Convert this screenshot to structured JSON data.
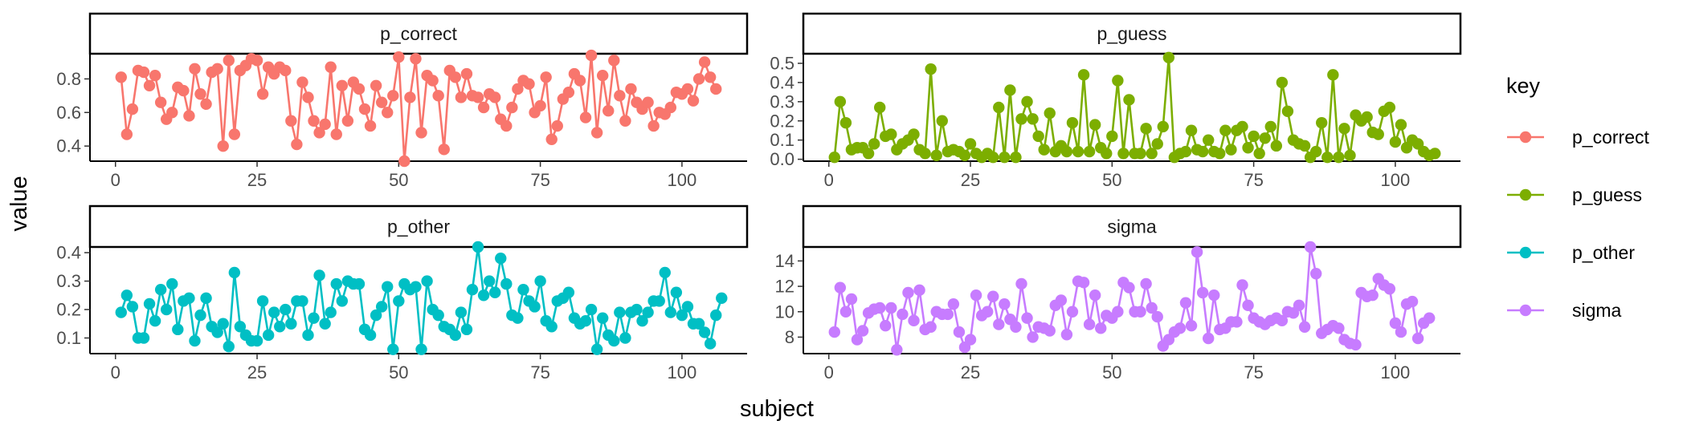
{
  "chart_data": {
    "type": "line",
    "x_label": "subject",
    "y_label": "value",
    "legend": {
      "title": "key",
      "position": "right",
      "entries": [
        {
          "name": "p_correct",
          "color": "#F8766D"
        },
        {
          "name": "p_guess",
          "color": "#7CAE00"
        },
        {
          "name": "p_other",
          "color": "#00BFC4"
        },
        {
          "name": "sigma",
          "color": "#C77CFF"
        }
      ]
    },
    "x_ticks": [
      0,
      25,
      50,
      75,
      100
    ],
    "x_range": [
      -4.5,
      111.5
    ],
    "panels": [
      {
        "name": "p_correct",
        "strip_label": "p_correct",
        "color": "#F8766D",
        "y_range": [
          0.31,
          0.95
        ],
        "y_ticks": [
          0.4,
          0.6,
          0.8
        ],
        "y_tick_labels": [
          "0.4",
          "0.6",
          "0.8"
        ],
        "values": [
          0.81,
          0.47,
          0.62,
          0.85,
          0.84,
          0.76,
          0.82,
          0.66,
          0.56,
          0.6,
          0.75,
          0.73,
          0.58,
          0.86,
          0.71,
          0.65,
          0.84,
          0.86,
          0.4,
          0.91,
          0.47,
          0.85,
          0.88,
          0.92,
          0.91,
          0.71,
          0.87,
          0.83,
          0.87,
          0.85,
          0.55,
          0.41,
          0.78,
          0.69,
          0.55,
          0.48,
          0.53,
          0.87,
          0.47,
          0.76,
          0.55,
          0.78,
          0.74,
          0.62,
          0.52,
          0.76,
          0.66,
          0.6,
          0.7,
          0.93,
          0.31,
          0.69,
          0.92,
          0.48,
          0.82,
          0.79,
          0.7,
          0.38,
          0.85,
          0.81,
          0.69,
          0.83,
          0.7,
          0.69,
          0.63,
          0.71,
          0.69,
          0.56,
          0.52,
          0.63,
          0.74,
          0.79,
          0.77,
          0.6,
          0.64,
          0.81,
          0.44,
          0.52,
          0.68,
          0.72,
          0.83,
          0.79,
          0.57,
          0.94,
          0.48,
          0.82,
          0.61,
          0.91,
          0.7,
          0.55,
          0.74,
          0.66,
          0.62,
          0.66,
          0.52,
          0.6,
          0.59,
          0.63,
          0.72,
          0.71,
          0.74,
          0.67,
          0.8,
          0.9,
          0.81,
          0.74
        ]
      },
      {
        "name": "p_guess",
        "strip_label": "p_guess",
        "color": "#7CAE00",
        "y_range": [
          -0.01,
          0.55
        ],
        "y_ticks": [
          0.0,
          0.1,
          0.2,
          0.3,
          0.4,
          0.5
        ],
        "y_tick_labels": [
          "0.0",
          "0.1",
          "0.2",
          "0.3",
          "0.4",
          "0.5"
        ],
        "values": [
          0.01,
          0.3,
          0.19,
          0.05,
          0.06,
          0.06,
          0.03,
          0.08,
          0.27,
          0.12,
          0.13,
          0.05,
          0.08,
          0.1,
          0.13,
          0.05,
          0.03,
          0.47,
          0.02,
          0.2,
          0.04,
          0.05,
          0.04,
          0.02,
          0.08,
          0.03,
          0.01,
          0.03,
          0.01,
          0.27,
          0.01,
          0.36,
          0.01,
          0.21,
          0.3,
          0.21,
          0.12,
          0.05,
          0.24,
          0.04,
          0.07,
          0.04,
          0.19,
          0.04,
          0.44,
          0.04,
          0.18,
          0.06,
          0.03,
          0.12,
          0.41,
          0.03,
          0.31,
          0.03,
          0.03,
          0.16,
          0.03,
          0.08,
          0.17,
          0.53,
          0.01,
          0.03,
          0.04,
          0.15,
          0.05,
          0.04,
          0.1,
          0.04,
          0.03,
          0.15,
          0.05,
          0.15,
          0.17,
          0.06,
          0.12,
          0.03,
          0.11,
          0.17,
          0.07,
          0.4,
          0.25,
          0.1,
          0.08,
          0.07,
          0.01,
          0.04,
          0.19,
          0.01,
          0.44,
          0.01,
          0.16,
          0.02,
          0.23,
          0.2,
          0.22,
          0.14,
          0.13,
          0.25,
          0.27,
          0.09,
          0.18,
          0.06,
          0.1,
          0.08,
          0.04,
          0.02,
          0.03
        ]
      },
      {
        "name": "p_other",
        "strip_label": "p_other",
        "color": "#00BFC4",
        "y_range": [
          0.045,
          0.42
        ],
        "y_ticks": [
          0.1,
          0.2,
          0.3,
          0.4
        ],
        "y_tick_labels": [
          "0.1",
          "0.2",
          "0.3",
          "0.4"
        ],
        "values": [
          0.19,
          0.25,
          0.21,
          0.1,
          0.1,
          0.22,
          0.16,
          0.27,
          0.2,
          0.29,
          0.13,
          0.23,
          0.24,
          0.09,
          0.18,
          0.24,
          0.14,
          0.12,
          0.15,
          0.07,
          0.33,
          0.14,
          0.11,
          0.09,
          0.09,
          0.23,
          0.11,
          0.19,
          0.14,
          0.2,
          0.15,
          0.23,
          0.23,
          0.11,
          0.17,
          0.32,
          0.15,
          0.19,
          0.29,
          0.23,
          0.3,
          0.29,
          0.29,
          0.13,
          0.11,
          0.18,
          0.21,
          0.28,
          0.06,
          0.23,
          0.29,
          0.27,
          0.28,
          0.06,
          0.3,
          0.2,
          0.18,
          0.14,
          0.13,
          0.11,
          0.19,
          0.13,
          0.27,
          0.42,
          0.25,
          0.3,
          0.26,
          0.38,
          0.29,
          0.18,
          0.17,
          0.27,
          0.23,
          0.21,
          0.3,
          0.16,
          0.14,
          0.23,
          0.24,
          0.26,
          0.17,
          0.15,
          0.16,
          0.2,
          0.06,
          0.17,
          0.11,
          0.09,
          0.19,
          0.1,
          0.19,
          0.2,
          0.16,
          0.19,
          0.23,
          0.23,
          0.33,
          0.19,
          0.26,
          0.18,
          0.21,
          0.15,
          0.15,
          0.12,
          0.08,
          0.18,
          0.24
        ]
      },
      {
        "name": "sigma",
        "strip_label": "sigma",
        "color": "#C77CFF",
        "y_range": [
          6.7,
          15.1
        ],
        "y_ticks": [
          8,
          10,
          12,
          14
        ],
        "y_tick_labels": [
          "8",
          "10",
          "12",
          "14"
        ],
        "values": [
          8.4,
          11.9,
          10.0,
          11.0,
          7.8,
          8.5,
          9.9,
          10.2,
          10.3,
          8.9,
          10.3,
          7.0,
          9.8,
          11.5,
          9.3,
          11.7,
          8.6,
          8.8,
          10.0,
          9.8,
          9.8,
          10.6,
          8.4,
          7.2,
          7.8,
          11.3,
          9.7,
          10.0,
          11.2,
          9.0,
          10.6,
          9.4,
          8.8,
          12.2,
          9.5,
          8.0,
          8.8,
          8.7,
          8.5,
          10.5,
          10.9,
          8.2,
          10.0,
          12.4,
          12.3,
          9.0,
          11.3,
          8.7,
          9.7,
          9.5,
          10.0,
          12.3,
          11.9,
          10.0,
          10.0,
          12.2,
          10.3,
          9.6,
          7.3,
          7.8,
          8.4,
          8.7,
          10.7,
          8.9,
          14.7,
          11.5,
          7.9,
          11.3,
          8.6,
          8.7,
          9.2,
          9.2,
          12.1,
          10.5,
          9.5,
          9.2,
          9.0,
          9.3,
          9.5,
          9.3,
          10.0,
          9.9,
          10.5,
          8.8,
          15.1,
          13.0,
          8.3,
          8.6,
          8.9,
          8.7,
          7.8,
          7.5,
          7.4,
          11.5,
          11.2,
          11.3,
          12.6,
          12.1,
          11.8,
          9.1,
          8.4,
          10.6,
          10.8,
          7.9,
          9.1,
          9.5
        ]
      }
    ]
  }
}
